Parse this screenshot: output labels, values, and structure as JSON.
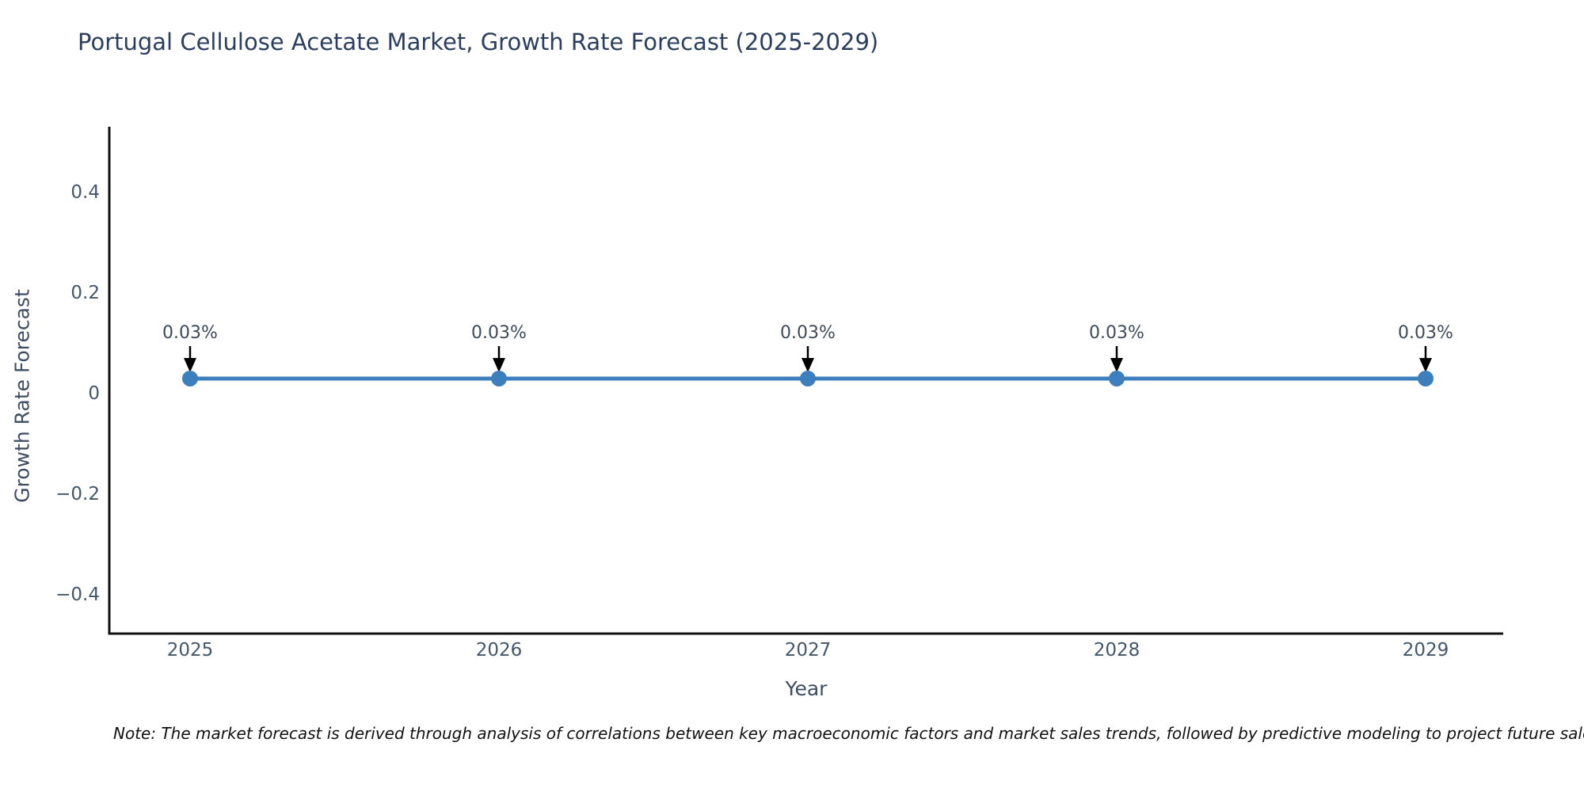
{
  "title_block": {
    "title": "Portugal Cellulose Acetate Market, Growth Rate Forecast (2025-2029)"
  },
  "note": "Note: The market forecast is derived through analysis of correlations between key macroeconomic factors and market sales trends, followed by predictive modeling to project future sales",
  "colors": {
    "line": "#3d7ebd",
    "marker": "#3d7ebd",
    "arrow": "#000000",
    "axis": "#111111",
    "title_text": "#2a3f5f",
    "tick_text": "#42576b"
  },
  "chart_data": {
    "type": "line",
    "title": "Portugal Cellulose Acetate Market, Growth Rate Forecast (2025-2029)",
    "xlabel": "Year",
    "ylabel": "Growth Rate Forecast",
    "x": [
      2025,
      2026,
      2027,
      2028,
      2029
    ],
    "values": [
      0.03,
      0.03,
      0.03,
      0.03,
      0.03
    ],
    "point_labels": [
      "0.03%",
      "0.03%",
      "0.03%",
      "0.03%",
      "0.03%"
    ],
    "xtick_labels": [
      "2025",
      "2026",
      "2027",
      "2028",
      "2029"
    ],
    "yticks": [
      0.4,
      0.2,
      0,
      -0.2,
      -0.4
    ],
    "ytick_labels": [
      "0.4",
      "0.2",
      "0",
      "−0.2",
      "−0.4"
    ],
    "ylim": [
      -0.48,
      0.53
    ],
    "grid": false,
    "legend": "none",
    "annotations_have_arrows": true
  }
}
